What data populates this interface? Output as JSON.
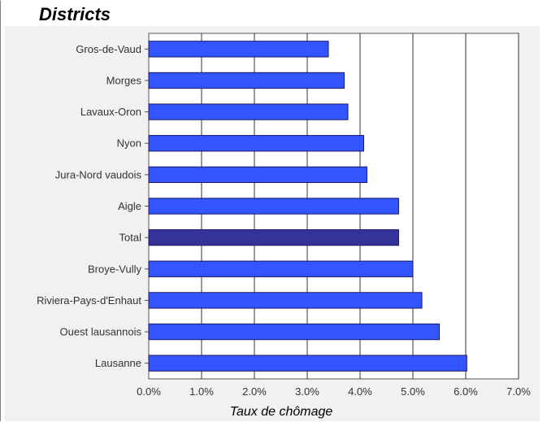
{
  "chart_data": {
    "type": "bar",
    "orientation": "horizontal",
    "title": "Districts",
    "xlabel": "Taux de chômage",
    "ylabel": "",
    "categories": [
      "Gros-de-Vaud",
      "Morges",
      "Lavaux-Oron",
      "Nyon",
      "Jura-Nord vaudois",
      "Aigle",
      "Total",
      "Broye-Vully",
      "Riviera-Pays-d'Enhaut",
      "Ouest lausannois",
      "Lausanne"
    ],
    "values": [
      3.4,
      3.7,
      3.77,
      4.07,
      4.13,
      4.73,
      4.73,
      5.0,
      5.17,
      5.5,
      6.02
    ],
    "highlight": "Total",
    "xlim": [
      0,
      7
    ],
    "xticks": [
      "0.0%",
      "1.0%",
      "2.0%",
      "3.0%",
      "4.0%",
      "5.0%",
      "6.0%",
      "7.0%"
    ],
    "grid": "vertical",
    "legend": "none",
    "colors": {
      "bar": "#3355ff",
      "highlight_bar": "#333399",
      "bar_edge": "#1a1a66",
      "grid": "#333333"
    }
  }
}
